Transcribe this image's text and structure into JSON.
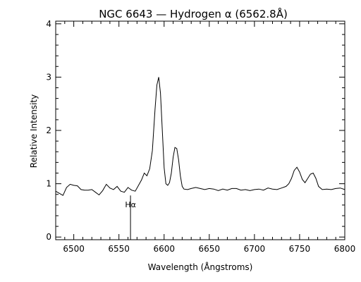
{
  "chart_data": {
    "type": "line",
    "title": "NGC 6643 — Hydrogen α (6562.8Å)",
    "xlabel": "Wavelength (Ångstroms)",
    "ylabel": "Relative Intensity",
    "xlim": [
      6480,
      6800
    ],
    "ylim": [
      -0.05,
      4.05
    ],
    "xticks": [
      6500,
      6550,
      6600,
      6650,
      6700,
      6750,
      6800
    ],
    "yticks": [
      0,
      1,
      2,
      3,
      4
    ],
    "grid": false,
    "annotation": {
      "label": "Hα",
      "x": 6562.8,
      "y_top": 0.78,
      "y_bottom": -0.05
    },
    "series": [
      {
        "x": [
          6480,
          6484,
          6488,
          6492,
          6496,
          6500,
          6504,
          6508,
          6512,
          6516,
          6520,
          6524,
          6528,
          6532,
          6536,
          6540,
          6544,
          6548,
          6552,
          6556,
          6560,
          6564,
          6568,
          6572,
          6575,
          6578,
          6581,
          6584,
          6587,
          6590,
          6592,
          6594,
          6596,
          6598,
          6600,
          6602,
          6604,
          6606,
          6608,
          6610,
          6612,
          6614,
          6616,
          6618,
          6620,
          6622,
          6626,
          6630,
          6635,
          6640,
          6645,
          6650,
          6655,
          6660,
          6665,
          6670,
          6675,
          6680,
          6685,
          6690,
          6695,
          6700,
          6705,
          6710,
          6715,
          6720,
          6725,
          6730,
          6735,
          6738,
          6741,
          6744,
          6747,
          6750,
          6753,
          6756,
          6759,
          6762,
          6765,
          6768,
          6771,
          6775,
          6780,
          6785,
          6790,
          6795,
          6800
        ],
        "y": [
          0.86,
          0.82,
          0.78,
          0.93,
          0.99,
          0.97,
          0.96,
          0.89,
          0.88,
          0.88,
          0.89,
          0.84,
          0.79,
          0.87,
          0.99,
          0.92,
          0.89,
          0.95,
          0.86,
          0.84,
          0.93,
          0.88,
          0.86,
          0.98,
          1.07,
          1.2,
          1.15,
          1.28,
          1.62,
          2.4,
          2.85,
          3.0,
          2.7,
          2.0,
          1.3,
          1.0,
          0.97,
          1.02,
          1.2,
          1.5,
          1.68,
          1.66,
          1.45,
          1.15,
          0.95,
          0.9,
          0.89,
          0.91,
          0.93,
          0.91,
          0.89,
          0.91,
          0.9,
          0.87,
          0.9,
          0.88,
          0.91,
          0.91,
          0.88,
          0.89,
          0.87,
          0.89,
          0.9,
          0.88,
          0.92,
          0.9,
          0.89,
          0.92,
          0.95,
          1.0,
          1.1,
          1.25,
          1.31,
          1.22,
          1.08,
          1.02,
          1.1,
          1.18,
          1.2,
          1.1,
          0.95,
          0.89,
          0.9,
          0.89,
          0.91,
          0.92,
          0.89
        ]
      }
    ]
  }
}
